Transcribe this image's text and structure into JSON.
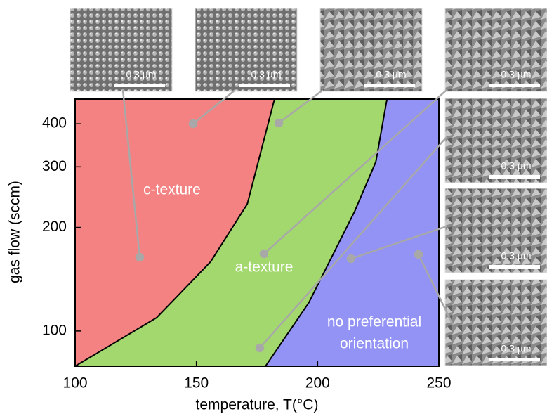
{
  "chart_data": {
    "type": "phase-diagram",
    "xlabel": "temperature, T(°C)",
    "ylabel": "gas flow (sccm)",
    "xlim": [
      100,
      250
    ],
    "ylim": [
      79,
      472
    ],
    "ylog": true,
    "xticks": [
      100,
      150,
      200,
      250
    ],
    "yticks": [
      100,
      200,
      300,
      400
    ],
    "boundaries": [
      {
        "x": [
          100,
          133.6,
          155.9,
          171,
          182.2
        ],
        "values": [
          79,
          109.3,
          159,
          234,
          472
        ]
      },
      {
        "x": [
          178.5,
          196.4,
          215.3,
          224,
          228.6
        ],
        "values": [
          79,
          121,
          223,
          310,
          472
        ]
      }
    ],
    "regions": [
      {
        "label_lines": [
          "c-texture"
        ],
        "color": "#f48282"
      },
      {
        "label_lines": [
          "a-texture"
        ],
        "color": "#a3d86e"
      },
      {
        "label_lines": [
          "no preferential",
          "orientation"
        ],
        "color": "#9393f6"
      }
    ]
  },
  "images": [
    {
      "scale": "0.3 µm"
    },
    {
      "scale": "0.3 µm"
    },
    {
      "scale": "0.3 µm"
    },
    {
      "scale": "0.3 µm"
    },
    {
      "scale": "0.3 µm"
    },
    {
      "scale": "0.3 µm"
    },
    {
      "scale": "0.3 µm"
    }
  ]
}
